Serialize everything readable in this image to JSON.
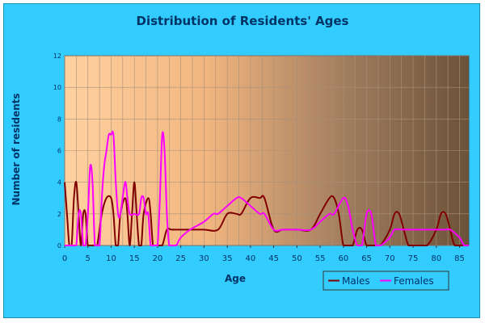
{
  "chart_data": {
    "type": "line",
    "title": "Distribution of Residents' Ages",
    "xlabel": "Age",
    "ylabel": "Number of residents",
    "xlim": [
      0,
      87
    ],
    "ylim": [
      0,
      12
    ],
    "x_ticks": [
      0,
      5,
      10,
      15,
      20,
      25,
      30,
      35,
      40,
      45,
      50,
      55,
      60,
      65,
      70,
      75,
      80,
      85
    ],
    "y_ticks": [
      0,
      2,
      4,
      6,
      8,
      10,
      12
    ],
    "grid": true,
    "legend": "bottom-right",
    "background": "gradient peach to dark brown",
    "series": [
      {
        "name": "Males",
        "color": "#800000",
        "points": [
          [
            0,
            4
          ],
          [
            0.5,
            2
          ],
          [
            1,
            0
          ],
          [
            1.5,
            0
          ],
          [
            2,
            3
          ],
          [
            2.5,
            4
          ],
          [
            3,
            2
          ],
          [
            3.5,
            0
          ],
          [
            4,
            2
          ],
          [
            4.5,
            2
          ],
          [
            5,
            0
          ],
          [
            6,
            0
          ],
          [
            6.5,
            0
          ],
          [
            7,
            0
          ],
          [
            8,
            2
          ],
          [
            9,
            3
          ],
          [
            10,
            3
          ],
          [
            10.5,
            2
          ],
          [
            11,
            0
          ],
          [
            11.5,
            0
          ],
          [
            12,
            2
          ],
          [
            13,
            3
          ],
          [
            13.5,
            2
          ],
          [
            14,
            0
          ],
          [
            14.5,
            2
          ],
          [
            15,
            4
          ],
          [
            15.5,
            2
          ],
          [
            16,
            0
          ],
          [
            16.5,
            0
          ],
          [
            17,
            2
          ],
          [
            18,
            3
          ],
          [
            18.5,
            2
          ],
          [
            19,
            0
          ],
          [
            19.5,
            0
          ],
          [
            20,
            0
          ],
          [
            21,
            0
          ],
          [
            22,
            1
          ],
          [
            23,
            1
          ],
          [
            25,
            1
          ],
          [
            27,
            1
          ],
          [
            30,
            1
          ],
          [
            33,
            1
          ],
          [
            35,
            2
          ],
          [
            37,
            2
          ],
          [
            38,
            2
          ],
          [
            40,
            3
          ],
          [
            42,
            3
          ],
          [
            43,
            3
          ],
          [
            45,
            1
          ],
          [
            47,
            1
          ],
          [
            50,
            1
          ],
          [
            53,
            1
          ],
          [
            55,
            2
          ],
          [
            57,
            3
          ],
          [
            58,
            3
          ],
          [
            59,
            2
          ],
          [
            60,
            0
          ],
          [
            61,
            0
          ],
          [
            62,
            0
          ],
          [
            63,
            1
          ],
          [
            64,
            1
          ],
          [
            65,
            0
          ],
          [
            66,
            0
          ],
          [
            67,
            0
          ],
          [
            68,
            0
          ],
          [
            70,
            1
          ],
          [
            71,
            2
          ],
          [
            72,
            2
          ],
          [
            73,
            1
          ],
          [
            74,
            0
          ],
          [
            75,
            0
          ],
          [
            76,
            0
          ],
          [
            78,
            0
          ],
          [
            80,
            1
          ],
          [
            81,
            2
          ],
          [
            82,
            2
          ],
          [
            83,
            1
          ],
          [
            84,
            0
          ],
          [
            86,
            0
          ]
        ]
      },
      {
        "name": "Females",
        "color": "#ff00ff",
        "points": [
          [
            0,
            0
          ],
          [
            1,
            0
          ],
          [
            2,
            0
          ],
          [
            2.5,
            0
          ],
          [
            3,
            2
          ],
          [
            3.5,
            2
          ],
          [
            4,
            0
          ],
          [
            4.5,
            0
          ],
          [
            5,
            2
          ],
          [
            5.5,
            5
          ],
          [
            6,
            4
          ],
          [
            6.5,
            0
          ],
          [
            7,
            0
          ],
          [
            7.5,
            0
          ],
          [
            8,
            3
          ],
          [
            8.5,
            5
          ],
          [
            9,
            6
          ],
          [
            9.5,
            7
          ],
          [
            10,
            7
          ],
          [
            10.5,
            7
          ],
          [
            11,
            4
          ],
          [
            11.5,
            2
          ],
          [
            12,
            2
          ],
          [
            13,
            4
          ],
          [
            13.5,
            3
          ],
          [
            14,
            2
          ],
          [
            15,
            2
          ],
          [
            16,
            2
          ],
          [
            16.5,
            3
          ],
          [
            17,
            3
          ],
          [
            17.5,
            2
          ],
          [
            18,
            2
          ],
          [
            18.5,
            0
          ],
          [
            19,
            0
          ],
          [
            19.5,
            0
          ],
          [
            20,
            0
          ],
          [
            20.5,
            3
          ],
          [
            21,
            7
          ],
          [
            21.5,
            6
          ],
          [
            22,
            2
          ],
          [
            22.5,
            0
          ],
          [
            23,
            0
          ],
          [
            24,
            0
          ],
          [
            25,
            0.5
          ],
          [
            27,
            1
          ],
          [
            30,
            1.5
          ],
          [
            32,
            2
          ],
          [
            33,
            2
          ],
          [
            35,
            2.5
          ],
          [
            37,
            3
          ],
          [
            38,
            3
          ],
          [
            40,
            2.5
          ],
          [
            42,
            2
          ],
          [
            43,
            2
          ],
          [
            45,
            1
          ],
          [
            47,
            1
          ],
          [
            50,
            1
          ],
          [
            53,
            1
          ],
          [
            55,
            1.5
          ],
          [
            57,
            2
          ],
          [
            58,
            2
          ],
          [
            60,
            3
          ],
          [
            61,
            2.5
          ],
          [
            62,
            1
          ],
          [
            63,
            0
          ],
          [
            64,
            0
          ],
          [
            65,
            2
          ],
          [
            66,
            2
          ],
          [
            67,
            0
          ],
          [
            68,
            0
          ],
          [
            70,
            0.5
          ],
          [
            71,
            1
          ],
          [
            73,
            1
          ],
          [
            75,
            1
          ],
          [
            77,
            1
          ],
          [
            80,
            1
          ],
          [
            82,
            1
          ],
          [
            83,
            1
          ],
          [
            85,
            0.5
          ],
          [
            86,
            0
          ],
          [
            87,
            0
          ]
        ]
      }
    ]
  }
}
